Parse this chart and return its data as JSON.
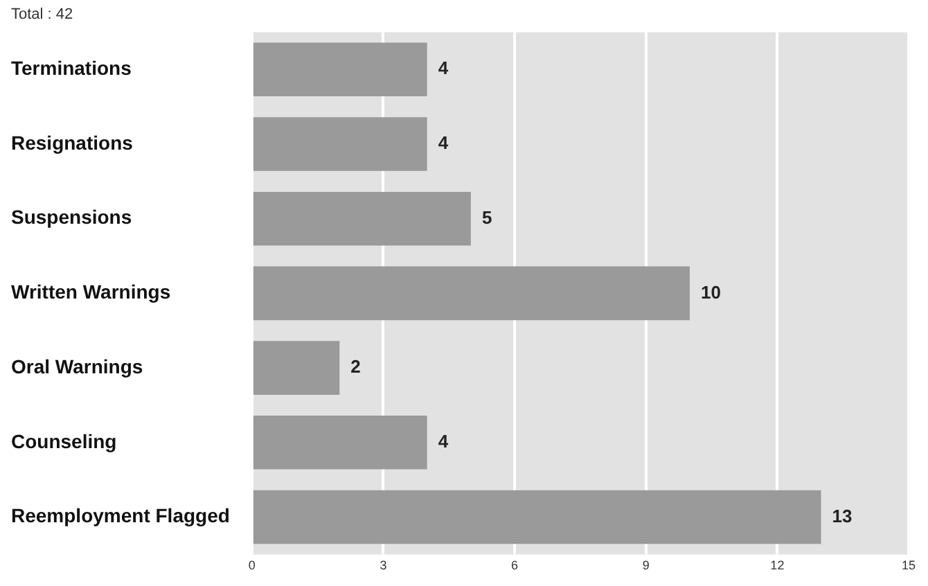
{
  "chart_data": {
    "type": "bar",
    "orientation": "horizontal",
    "title": "Total : 42",
    "categories": [
      "Terminations",
      "Resignations",
      "Suspensions",
      "Written Warnings",
      "Oral Warnings",
      "Counseling",
      "Reemployment Flagged"
    ],
    "values": [
      4,
      4,
      5,
      10,
      2,
      4,
      13
    ],
    "color": "#9a9a9a",
    "xlim": [
      0,
      15
    ],
    "xticks": [
      0,
      3,
      6,
      9,
      12,
      15
    ],
    "grid": "x",
    "data_labels": true,
    "legend": false
  }
}
